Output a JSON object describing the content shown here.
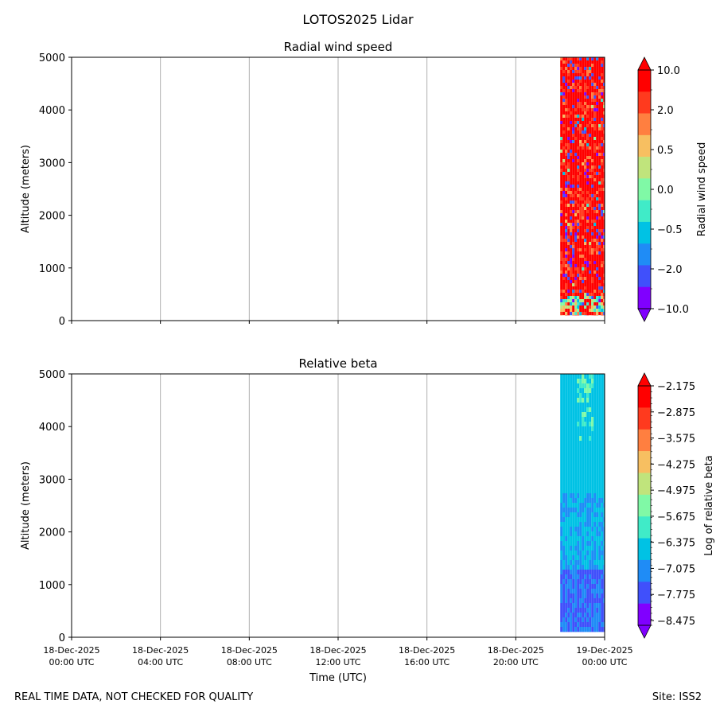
{
  "figure_title": "LOTOS2025 Lidar",
  "footer": {
    "disclaimer": "REAL TIME DATA, NOT CHECKED FOR QUALITY",
    "site": "Site: ISS2"
  },
  "chart_data": [
    {
      "type": "heatmap",
      "title": "Radial wind speed",
      "xlabel": "",
      "ylabel": "Altitude (meters)",
      "ylim": [
        0,
        5000
      ],
      "yticks": [
        "0",
        "1000",
        "2000",
        "3000",
        "4000",
        "5000"
      ],
      "x_range_hours": [
        0,
        24
      ],
      "x_tick_hours": [
        0,
        4,
        8,
        12,
        16,
        20,
        24
      ],
      "data_time_range_hours": [
        22.0,
        24.0
      ],
      "data_altitude_range": [
        100,
        5000
      ],
      "grid": "vertical",
      "pattern": "noisy",
      "colorbar": {
        "label": "Radial wind speed",
        "extend": "both",
        "tick_labels": [
          "10.0",
          "2.0",
          "0.5",
          "0.0",
          "−0.5",
          "−2.0",
          "−10.0"
        ],
        "colors": [
          "#ff0000",
          "#ff3a1e",
          "#ff7f40",
          "#f7bf61",
          "#c0e47c",
          "#80f9a6",
          "#40ebc8",
          "#00c2e4",
          "#1f8cf6",
          "#4050fb",
          "#8000ff"
        ]
      }
    },
    {
      "type": "heatmap",
      "title": "Relative beta",
      "xlabel": "Time (UTC)",
      "ylabel": "Altitude (meters)",
      "ylim": [
        0,
        5000
      ],
      "yticks": [
        "0",
        "1000",
        "2000",
        "3000",
        "4000",
        "5000"
      ],
      "x_range_hours": [
        0,
        24
      ],
      "x_tick_hours": [
        0,
        4,
        8,
        12,
        16,
        20,
        24
      ],
      "x_tick_labels": [
        [
          "18-Dec-2025",
          "00:00 UTC"
        ],
        [
          "18-Dec-2025",
          "04:00 UTC"
        ],
        [
          "18-Dec-2025",
          "08:00 UTC"
        ],
        [
          "18-Dec-2025",
          "12:00 UTC"
        ],
        [
          "18-Dec-2025",
          "16:00 UTC"
        ],
        [
          "18-Dec-2025",
          "20:00 UTC"
        ],
        [
          "19-Dec-2025",
          "00:00 UTC"
        ]
      ],
      "data_time_range_hours": [
        22.0,
        24.0
      ],
      "data_altitude_range": [
        100,
        5000
      ],
      "grid": "vertical",
      "pattern": "layered",
      "colorbar": {
        "label": "Log of relative beta",
        "extend": "both",
        "tick_labels": [
          "−2.175",
          "−2.875",
          "−3.575",
          "−4.275",
          "−4.975",
          "−5.675",
          "−6.375",
          "−7.075",
          "−7.775",
          "−8.475"
        ],
        "colors": [
          "#ff0000",
          "#ff3a1e",
          "#ff7f40",
          "#f7bf61",
          "#c0e47c",
          "#80f9a6",
          "#40ebc8",
          "#00c2e4",
          "#1f8cf6",
          "#4050fb",
          "#8000ff"
        ]
      }
    }
  ]
}
